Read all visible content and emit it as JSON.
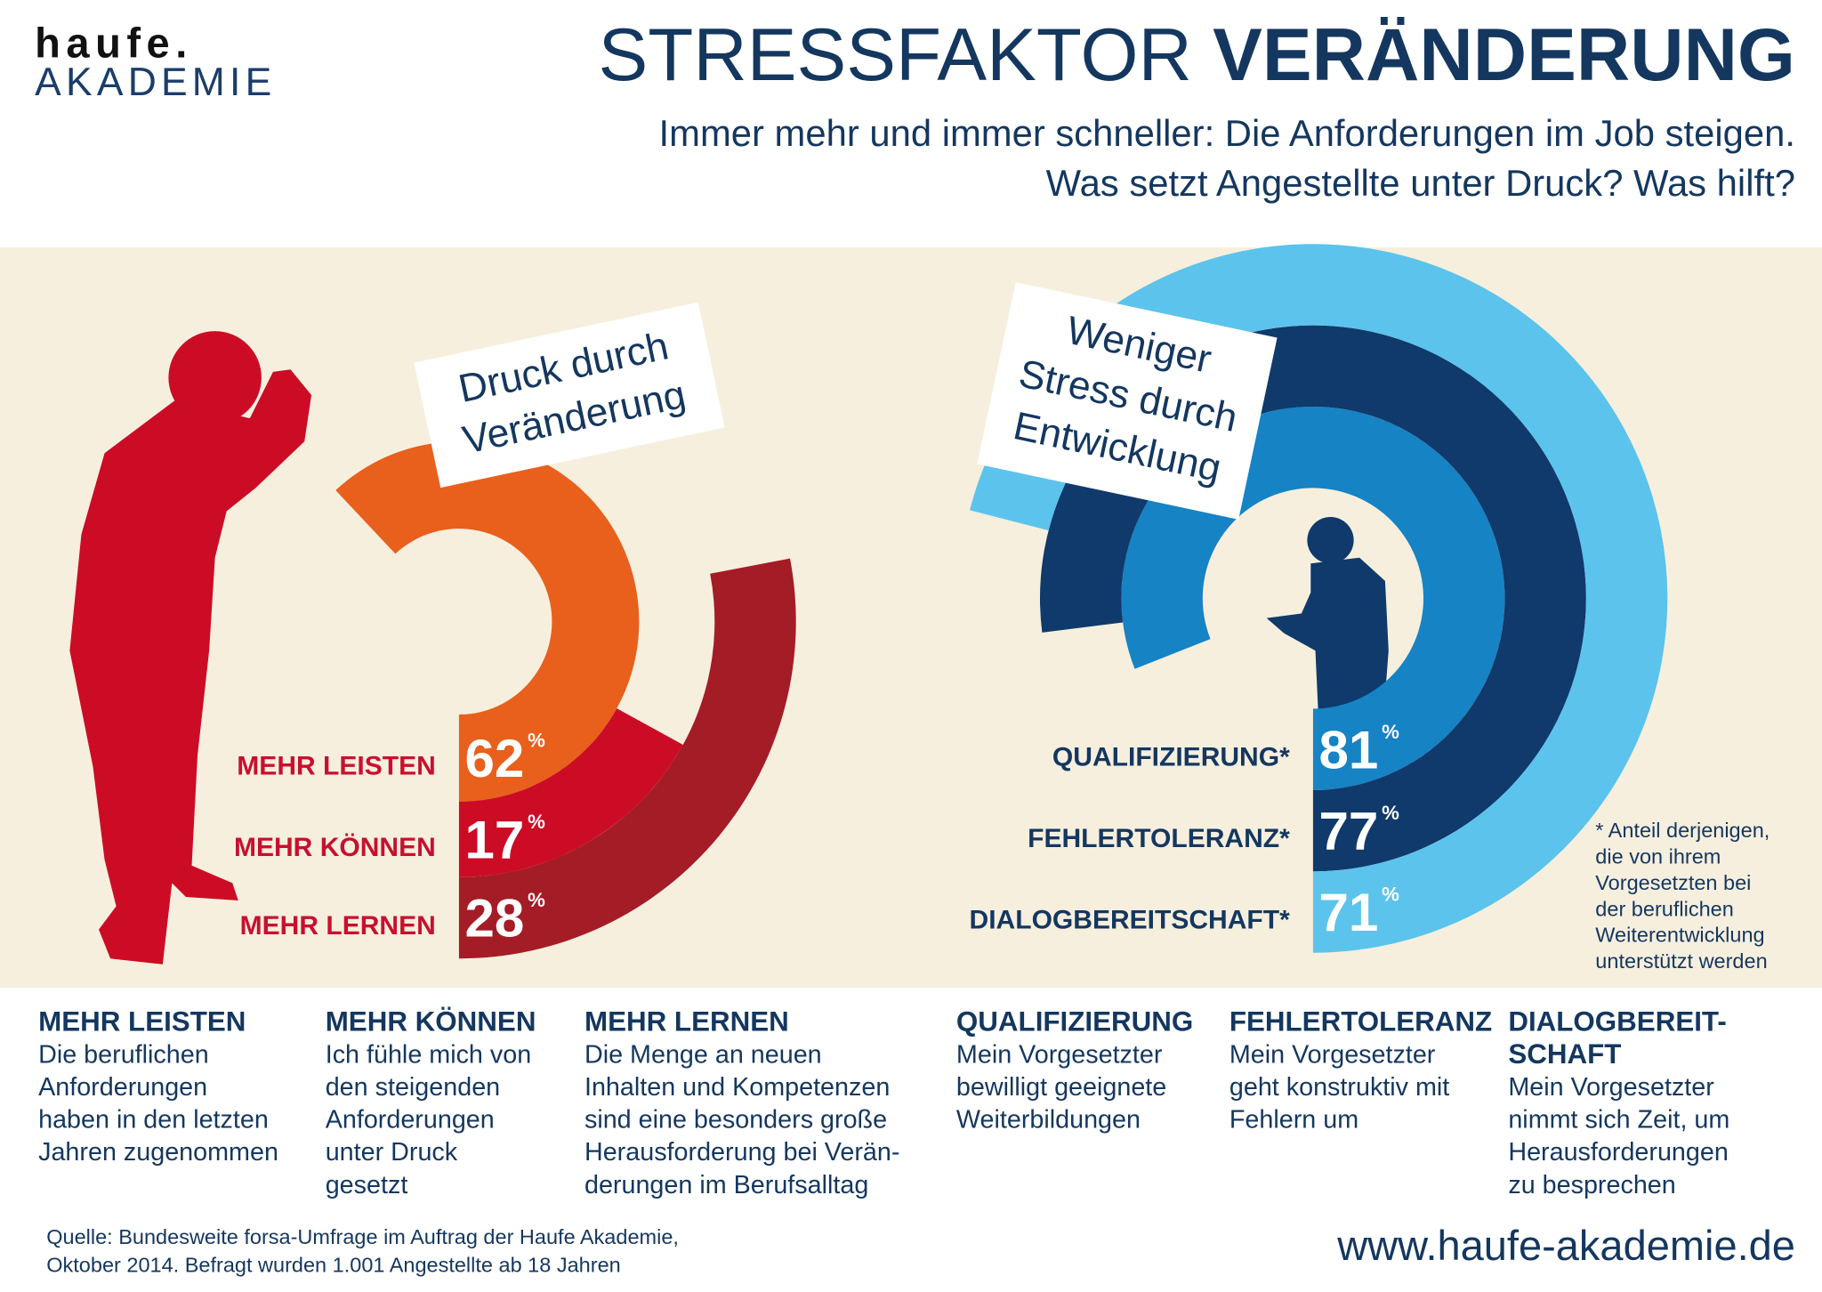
{
  "header": {
    "logo": [
      "haufe.",
      "AKADEMIE"
    ],
    "title": [
      "STRESSFAKTOR",
      "VERÄNDERUNG"
    ],
    "subtitle": [
      "Immer mehr und immer schneller: Die Anforderungen im Job steigen.",
      "Was setzt Angestellte unter Druck? Was hilft?"
    ]
  },
  "chart_data": [
    {
      "type": "radial-bar",
      "title_lines": [
        "Druck durch",
        "Veränderung"
      ],
      "categories": [
        "MEHR LEISTEN",
        "MEHR KÖNNEN",
        "MEHR LERNEN"
      ],
      "values": [
        62,
        17,
        28
      ],
      "unit": "%",
      "colors": [
        "#e8601c",
        "#cc0c25",
        "#a41c26"
      ],
      "label_color": "#c8102e"
    },
    {
      "type": "radial-bar",
      "title_lines": [
        "Weniger",
        "Stress durch",
        "Entwicklung"
      ],
      "categories": [
        "QUALIFIZIERUNG*",
        "FEHLERTOLERANZ*",
        "DIALOGBEREITSCHAFT*"
      ],
      "values": [
        81,
        77,
        71
      ],
      "unit": "%",
      "colors": [
        "#1683c5",
        "#0f3a6b",
        "#5cc3ec"
      ],
      "label_color": "#14375f"
    }
  ],
  "footnote": [
    "* Anteil derjenigen,",
    "die von ihrem",
    "Vorgesetzten bei",
    "der beruflichen",
    "Weiterentwicklung",
    "unterstützt werden"
  ],
  "definitions": [
    {
      "heading": [
        "MEHR LEISTEN"
      ],
      "text": [
        "Die beruflichen",
        "Anforderungen",
        "haben in den letzten",
        "Jahren zugenommen"
      ]
    },
    {
      "heading": [
        "MEHR KÖNNEN"
      ],
      "text": [
        "Ich fühle mich von",
        "den steigenden",
        "Anforderungen",
        "unter Druck",
        "gesetzt"
      ]
    },
    {
      "heading": [
        "MEHR LERNEN"
      ],
      "text": [
        "Die Menge an neuen",
        "Inhalten und Kompetenzen",
        "sind eine besonders große",
        "Herausforderung bei Verän-",
        "derungen im Berufsalltag"
      ]
    },
    {
      "heading": [
        "QUALIFIZIERUNG"
      ],
      "text": [
        "Mein Vorgesetzter",
        "bewilligt geeignete",
        "Weiterbildungen"
      ]
    },
    {
      "heading": [
        "FEHLERTOLERANZ"
      ],
      "text": [
        "Mein Vorgesetzter",
        "geht konstruktiv mit",
        "Fehlern um"
      ]
    },
    {
      "heading": [
        "DIALOGBEREIT-",
        "SCHAFT"
      ],
      "text": [
        "Mein Vorgesetzter",
        "nimmt sich Zeit, um",
        "Herausforderungen",
        "zu besprechen"
      ]
    }
  ],
  "source": [
    "Quelle: Bundesweite forsa-Umfrage im Auftrag der Haufe Akademie,",
    "Oktober 2014. Befragt wurden 1.001 Angestellte ab 18 Jahren"
  ],
  "url": "www.haufe-akademie.de"
}
